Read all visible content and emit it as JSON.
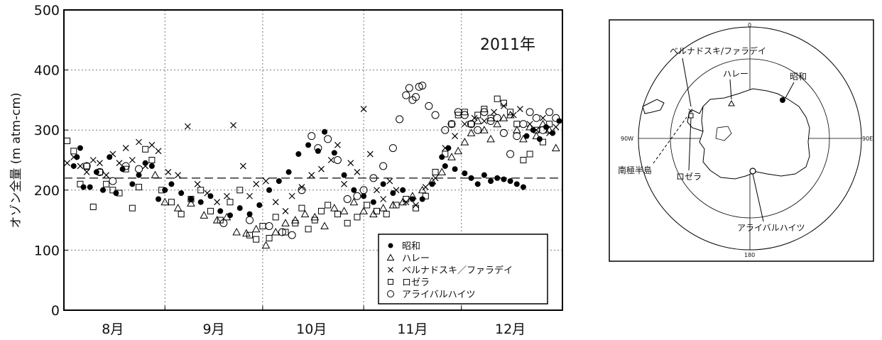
{
  "chart_data": {
    "type": "scatter",
    "title": "2011年",
    "ylabel": "オゾン全量 (m atm-cm)",
    "xlabel": "",
    "ylim": [
      0,
      500
    ],
    "yticks": [
      0,
      100,
      200,
      300,
      400,
      500
    ],
    "month_ticks": [
      "8月",
      "9月",
      "10月",
      "11月",
      "12月"
    ],
    "reference_line": 220,
    "grid": true,
    "legend_position": "bottom-right",
    "x_unit": "day of year 2011",
    "xlim": [
      213,
      366
    ],
    "series": [
      {
        "name": "昭和",
        "marker": "filled-circle",
        "points": [
          [
            216,
            240
          ],
          [
            217,
            255
          ],
          [
            218,
            270
          ],
          [
            219,
            205
          ],
          [
            221,
            205
          ],
          [
            223,
            230
          ],
          [
            225,
            200
          ],
          [
            227,
            255
          ],
          [
            229,
            195
          ],
          [
            231,
            235
          ],
          [
            234,
            210
          ],
          [
            236,
            225
          ],
          [
            238,
            245
          ],
          [
            240,
            240
          ],
          [
            242,
            185
          ],
          [
            244,
            200
          ],
          [
            246,
            210
          ],
          [
            249,
            195
          ],
          [
            252,
            185
          ],
          [
            255,
            180
          ],
          [
            258,
            190
          ],
          [
            261,
            165
          ],
          [
            264,
            158
          ],
          [
            267,
            170
          ],
          [
            270,
            160
          ],
          [
            273,
            175
          ],
          [
            276,
            200
          ],
          [
            279,
            215
          ],
          [
            282,
            230
          ],
          [
            285,
            260
          ],
          [
            288,
            275
          ],
          [
            291,
            265
          ],
          [
            293,
            297
          ],
          [
            296,
            262
          ],
          [
            299,
            225
          ],
          [
            302,
            200
          ],
          [
            305,
            190
          ],
          [
            308,
            180
          ],
          [
            311,
            210
          ],
          [
            314,
            195
          ],
          [
            317,
            200
          ],
          [
            320,
            185
          ],
          [
            323,
            185
          ],
          [
            326,
            210
          ],
          [
            329,
            255
          ],
          [
            330,
            240
          ],
          [
            331,
            270
          ],
          [
            333,
            235
          ],
          [
            336,
            228
          ],
          [
            338,
            220
          ],
          [
            340,
            210
          ],
          [
            342,
            225
          ],
          [
            344,
            215
          ],
          [
            346,
            220
          ],
          [
            348,
            218
          ],
          [
            350,
            215
          ],
          [
            352,
            210
          ],
          [
            354,
            205
          ],
          [
            355,
            290
          ],
          [
            357,
            300
          ],
          [
            359,
            285
          ],
          [
            361,
            305
          ],
          [
            363,
            295
          ],
          [
            365,
            315
          ]
        ]
      },
      {
        "name": "ハレー",
        "marker": "triangle",
        "points": [
          [
            241,
            225
          ],
          [
            244,
            180
          ],
          [
            248,
            170
          ],
          [
            252,
            178
          ],
          [
            256,
            158
          ],
          [
            260,
            150
          ],
          [
            263,
            155
          ],
          [
            266,
            130
          ],
          [
            269,
            128
          ],
          [
            272,
            135
          ],
          [
            275,
            108
          ],
          [
            278,
            130
          ],
          [
            281,
            145
          ],
          [
            284,
            150
          ],
          [
            287,
            160
          ],
          [
            290,
            155
          ],
          [
            293,
            140
          ],
          [
            296,
            170
          ],
          [
            299,
            165
          ],
          [
            302,
            180
          ],
          [
            305,
            165
          ],
          [
            308,
            160
          ],
          [
            311,
            170
          ],
          [
            314,
            175
          ],
          [
            317,
            180
          ],
          [
            320,
            190
          ],
          [
            323,
            200
          ],
          [
            326,
            215
          ],
          [
            329,
            230
          ],
          [
            332,
            255
          ],
          [
            334,
            265
          ],
          [
            336,
            280
          ],
          [
            338,
            295
          ],
          [
            340,
            315
          ],
          [
            342,
            300
          ],
          [
            344,
            285
          ],
          [
            346,
            310
          ],
          [
            348,
            320
          ],
          [
            350,
            325
          ],
          [
            352,
            300
          ],
          [
            354,
            285
          ],
          [
            356,
            305
          ],
          [
            358,
            290
          ],
          [
            360,
            310
          ],
          [
            362,
            300
          ],
          [
            364,
            270
          ]
        ]
      },
      {
        "name": "ベルナドスキ／ファラデイ",
        "marker": "cross",
        "points": [
          [
            214,
            245
          ],
          [
            216,
            255
          ],
          [
            218,
            240
          ],
          [
            220,
            230
          ],
          [
            222,
            250
          ],
          [
            224,
            245
          ],
          [
            226,
            225
          ],
          [
            228,
            260
          ],
          [
            230,
            245
          ],
          [
            232,
            270
          ],
          [
            234,
            250
          ],
          [
            236,
            280
          ],
          [
            238,
            240
          ],
          [
            240,
            275
          ],
          [
            242,
            265
          ],
          [
            245,
            230
          ],
          [
            248,
            225
          ],
          [
            251,
            306
          ],
          [
            254,
            210
          ],
          [
            257,
            195
          ],
          [
            260,
            180
          ],
          [
            263,
            190
          ],
          [
            265,
            308
          ],
          [
            268,
            240
          ],
          [
            270,
            190
          ],
          [
            272,
            210
          ],
          [
            275,
            215
          ],
          [
            278,
            180
          ],
          [
            281,
            165
          ],
          [
            283,
            190
          ],
          [
            286,
            205
          ],
          [
            289,
            225
          ],
          [
            292,
            235
          ],
          [
            295,
            250
          ],
          [
            297,
            275
          ],
          [
            299,
            210
          ],
          [
            301,
            245
          ],
          [
            303,
            230
          ],
          [
            305,
            335
          ],
          [
            307,
            260
          ],
          [
            309,
            200
          ],
          [
            311,
            185
          ],
          [
            313,
            215
          ],
          [
            315,
            200
          ],
          [
            318,
            180
          ],
          [
            321,
            175
          ],
          [
            324,
            205
          ],
          [
            327,
            220
          ],
          [
            330,
            270
          ],
          [
            333,
            290
          ],
          [
            336,
            310
          ],
          [
            339,
            320
          ],
          [
            342,
            315
          ],
          [
            345,
            330
          ],
          [
            348,
            340
          ],
          [
            351,
            325
          ],
          [
            353,
            335
          ],
          [
            356,
            310
          ],
          [
            358,
            300
          ],
          [
            360,
            320
          ],
          [
            362,
            295
          ],
          [
            364,
            305
          ]
        ]
      },
      {
        "name": "ロゼラ",
        "marker": "square",
        "points": [
          [
            214,
            282
          ],
          [
            216,
            265
          ],
          [
            218,
            210
          ],
          [
            220,
            240
          ],
          [
            222,
            172
          ],
          [
            224,
            230
          ],
          [
            226,
            210
          ],
          [
            228,
            200
          ],
          [
            230,
            195
          ],
          [
            232,
            235
          ],
          [
            234,
            170
          ],
          [
            236,
            205
          ],
          [
            238,
            268
          ],
          [
            240,
            250
          ],
          [
            243,
            200
          ],
          [
            246,
            180
          ],
          [
            249,
            160
          ],
          [
            252,
            185
          ],
          [
            255,
            200
          ],
          [
            258,
            165
          ],
          [
            261,
            150
          ],
          [
            264,
            180
          ],
          [
            267,
            200
          ],
          [
            270,
            125
          ],
          [
            272,
            118
          ],
          [
            274,
            140
          ],
          [
            276,
            120
          ],
          [
            278,
            155
          ],
          [
            281,
            130
          ],
          [
            284,
            145
          ],
          [
            286,
            170
          ],
          [
            288,
            135
          ],
          [
            290,
            150
          ],
          [
            292,
            165
          ],
          [
            294,
            175
          ],
          [
            297,
            160
          ],
          [
            300,
            145
          ],
          [
            303,
            155
          ],
          [
            306,
            175
          ],
          [
            309,
            165
          ],
          [
            312,
            160
          ],
          [
            315,
            175
          ],
          [
            318,
            185
          ],
          [
            321,
            170
          ],
          [
            324,
            190
          ],
          [
            327,
            230
          ],
          [
            330,
            260
          ],
          [
            332,
            310
          ],
          [
            334,
            325
          ],
          [
            336,
            330
          ],
          [
            338,
            310
          ],
          [
            340,
            325
          ],
          [
            342,
            335
          ],
          [
            344,
            320
          ],
          [
            346,
            352
          ],
          [
            348,
            345
          ],
          [
            350,
            330
          ],
          [
            352,
            310
          ],
          [
            354,
            250
          ],
          [
            356,
            260
          ],
          [
            358,
            300
          ],
          [
            360,
            280
          ],
          [
            362,
            310
          ]
        ]
      },
      {
        "name": "アライバルハイツ",
        "marker": "open-circle",
        "points": [
          [
            220,
            240
          ],
          [
            224,
            230
          ],
          [
            228,
            215
          ],
          [
            232,
            240
          ],
          [
            236,
            235
          ],
          [
            262,
            145
          ],
          [
            270,
            150
          ],
          [
            276,
            140
          ],
          [
            280,
            130
          ],
          [
            283,
            125
          ],
          [
            286,
            200
          ],
          [
            289,
            290
          ],
          [
            291,
            270
          ],
          [
            294,
            285
          ],
          [
            297,
            250
          ],
          [
            300,
            185
          ],
          [
            303,
            190
          ],
          [
            305,
            200
          ],
          [
            308,
            220
          ],
          [
            311,
            240
          ],
          [
            314,
            270
          ],
          [
            316,
            318
          ],
          [
            318,
            358
          ],
          [
            319,
            370
          ],
          [
            320,
            350
          ],
          [
            321,
            355
          ],
          [
            322,
            372
          ],
          [
            323,
            374
          ],
          [
            325,
            340
          ],
          [
            327,
            325
          ],
          [
            330,
            300
          ],
          [
            332,
            310
          ],
          [
            334,
            330
          ],
          [
            336,
            325
          ],
          [
            338,
            310
          ],
          [
            340,
            300
          ],
          [
            342,
            330
          ],
          [
            344,
            315
          ],
          [
            346,
            320
          ],
          [
            348,
            295
          ],
          [
            350,
            260
          ],
          [
            352,
            290
          ],
          [
            354,
            310
          ],
          [
            356,
            330
          ],
          [
            358,
            320
          ],
          [
            360,
            300
          ],
          [
            362,
            330
          ],
          [
            364,
            320
          ]
        ]
      }
    ]
  },
  "map": {
    "lbl_faraday": "ベルナドスキ/ファラデイ",
    "lbl_halley": "ハレー",
    "lbl_syowa": "昭和",
    "lbl_peninsula": "南極半島",
    "lbl_rothera": "ロゼラ",
    "lbl_arrival": "アライバルハイツ",
    "lbl_0": "0",
    "lbl_90w": "90W",
    "lbl_90e": "90E",
    "lbl_180": "180"
  }
}
